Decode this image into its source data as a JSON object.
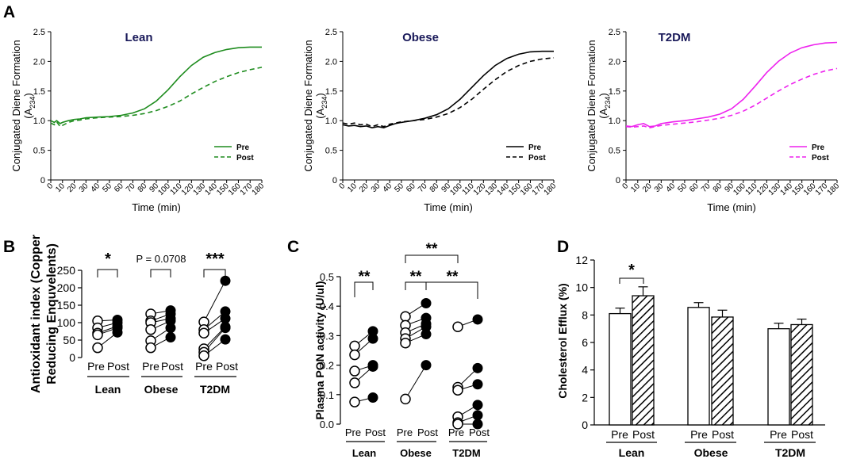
{
  "panel_letters": {
    "a": "A",
    "b": "B",
    "c": "C",
    "d": "D"
  },
  "chart_data": [
    {
      "id": "A-lean",
      "type": "line",
      "title": "Lean",
      "title_color": "#1a1a5a",
      "ylabel": "Conjugated Diene Formation",
      "ylabel2_base": "(A",
      "ylabel2_sub": "234",
      "ylabel2_end": ")",
      "xlabel": "Time (min)",
      "ylim": [
        0,
        2.5
      ],
      "yticks": [
        "0",
        "0.5",
        "1.0",
        "1.5",
        "2.0",
        "2.5"
      ],
      "xticks": [
        "0",
        "10",
        "20",
        "30",
        "40",
        "50",
        "60",
        "70",
        "80",
        "90",
        "100",
        "110",
        "120",
        "130",
        "140",
        "150",
        "160",
        "170",
        "180"
      ],
      "legend_position": "bottom-right",
      "series": [
        {
          "name": "Pre",
          "color": "#1e8c1e",
          "dash": false,
          "x": [
            0,
            3,
            5,
            8,
            10,
            15,
            20,
            25,
            30,
            40,
            50,
            60,
            70,
            80,
            90,
            100,
            110,
            120,
            130,
            140,
            150,
            160,
            170,
            180
          ],
          "y": [
            1.0,
            0.97,
            1.0,
            0.95,
            0.97,
            1.0,
            1.02,
            1.03,
            1.05,
            1.06,
            1.07,
            1.09,
            1.13,
            1.2,
            1.33,
            1.52,
            1.74,
            1.93,
            2.07,
            2.15,
            2.2,
            2.23,
            2.24,
            2.24
          ]
        },
        {
          "name": "Post",
          "color": "#1e8c1e",
          "dash": true,
          "x": [
            0,
            3,
            5,
            8,
            10,
            15,
            20,
            25,
            30,
            40,
            50,
            60,
            70,
            80,
            90,
            100,
            110,
            120,
            130,
            140,
            150,
            160,
            170,
            180
          ],
          "y": [
            0.96,
            0.93,
            0.98,
            0.9,
            0.92,
            0.97,
            1.0,
            1.01,
            1.03,
            1.05,
            1.06,
            1.07,
            1.09,
            1.12,
            1.17,
            1.24,
            1.33,
            1.45,
            1.56,
            1.66,
            1.74,
            1.81,
            1.86,
            1.9
          ]
        }
      ]
    },
    {
      "id": "A-obese",
      "type": "line",
      "title": "Obese",
      "title_color": "#1a1a5a",
      "ylabel": "Conjugated Diene Formation",
      "ylabel2_base": "(A",
      "ylabel2_sub": "234",
      "ylabel2_end": ")",
      "xlabel": "Time (min)",
      "ylim": [
        0,
        2.5
      ],
      "yticks": [
        "0",
        "0.5",
        "1.0",
        "1.5",
        "2.0",
        "2.5"
      ],
      "xticks": [
        "0",
        "10",
        "20",
        "30",
        "40",
        "50",
        "60",
        "70",
        "80",
        "90",
        "100",
        "110",
        "120",
        "130",
        "140",
        "150",
        "160",
        "170",
        "180"
      ],
      "legend_position": "bottom-right",
      "series": [
        {
          "name": "Pre",
          "color": "#000000",
          "dash": false,
          "x": [
            0,
            5,
            10,
            15,
            20,
            25,
            30,
            35,
            40,
            45,
            50,
            60,
            70,
            80,
            90,
            100,
            110,
            120,
            130,
            140,
            150,
            160,
            170,
            180
          ],
          "y": [
            0.93,
            0.91,
            0.92,
            0.9,
            0.91,
            0.88,
            0.9,
            0.88,
            0.92,
            0.95,
            0.97,
            1.0,
            1.04,
            1.1,
            1.2,
            1.36,
            1.56,
            1.76,
            1.93,
            2.05,
            2.12,
            2.16,
            2.17,
            2.17
          ]
        },
        {
          "name": "Post",
          "color": "#000000",
          "dash": true,
          "x": [
            0,
            5,
            10,
            15,
            20,
            25,
            30,
            35,
            40,
            45,
            50,
            60,
            70,
            80,
            90,
            100,
            110,
            120,
            130,
            140,
            150,
            160,
            170,
            180
          ],
          "y": [
            0.96,
            0.94,
            0.96,
            0.93,
            0.94,
            0.9,
            0.93,
            0.9,
            0.94,
            0.96,
            0.98,
            1.0,
            1.02,
            1.06,
            1.12,
            1.22,
            1.36,
            1.53,
            1.69,
            1.83,
            1.93,
            2.0,
            2.04,
            2.06
          ]
        }
      ]
    },
    {
      "id": "A-t2dm",
      "type": "line",
      "title": "T2DM",
      "title_color": "#1a1a5a",
      "ylabel": "Conjugated Diene Formation",
      "ylabel2_base": "(A",
      "ylabel2_sub": "234",
      "ylabel2_end": ")",
      "xlabel": "Time (min)",
      "ylim": [
        0,
        2.5
      ],
      "yticks": [
        "0",
        "0.5",
        "1.0",
        "1.5",
        "2.0",
        "2.5"
      ],
      "xticks": [
        "0",
        "10",
        "20",
        "30",
        "40",
        "50",
        "60",
        "70",
        "80",
        "90",
        "100",
        "110",
        "120",
        "130",
        "140",
        "150",
        "160",
        "170",
        "180"
      ],
      "legend_position": "bottom-right",
      "series": [
        {
          "name": "Pre",
          "color": "#ee22ee",
          "dash": false,
          "x": [
            0,
            5,
            10,
            15,
            20,
            25,
            30,
            40,
            50,
            60,
            70,
            80,
            90,
            100,
            110,
            120,
            130,
            140,
            150,
            160,
            170,
            180
          ],
          "y": [
            0.91,
            0.9,
            0.93,
            0.95,
            0.9,
            0.91,
            0.95,
            0.98,
            1.0,
            1.03,
            1.06,
            1.11,
            1.2,
            1.36,
            1.58,
            1.81,
            2.0,
            2.14,
            2.23,
            2.28,
            2.31,
            2.32
          ]
        },
        {
          "name": "Post",
          "color": "#ee22ee",
          "dash": true,
          "x": [
            0,
            5,
            10,
            15,
            20,
            25,
            30,
            40,
            50,
            60,
            70,
            80,
            90,
            100,
            110,
            120,
            130,
            140,
            150,
            160,
            170,
            180
          ],
          "y": [
            0.9,
            0.89,
            0.9,
            0.91,
            0.88,
            0.9,
            0.92,
            0.94,
            0.96,
            0.98,
            1.01,
            1.04,
            1.09,
            1.16,
            1.26,
            1.38,
            1.5,
            1.61,
            1.7,
            1.78,
            1.84,
            1.88
          ]
        }
      ]
    },
    {
      "id": "B",
      "type": "scatter",
      "ylabel": "Antioxidant index (Copper",
      "ylabel2": "Reducing Enquvelents)",
      "ylim": [
        0,
        250
      ],
      "yticks": [
        "0",
        "50",
        "100",
        "150",
        "200",
        "250"
      ],
      "tick_labels": [
        "Pre",
        "Post",
        "Pre",
        "Post",
        "Pre",
        "Post"
      ],
      "group_labels": [
        "Lean",
        "Obese",
        "T2DM"
      ],
      "significance": [
        "*",
        "P = 0.0708",
        "***"
      ],
      "groups": [
        {
          "name": "Lean",
          "pre": [
            105,
            85,
            70,
            65,
            28
          ],
          "post": [
            108,
            100,
            90,
            85,
            72
          ]
        },
        {
          "name": "Obese",
          "pre": [
            125,
            105,
            100,
            80,
            48,
            28
          ],
          "post": [
            135,
            125,
            112,
            105,
            85,
            58
          ]
        },
        {
          "name": "T2DM",
          "pre": [
            102,
            80,
            70,
            25,
            15,
            5
          ],
          "post": [
            220,
            132,
            112,
            88,
            85,
            52
          ]
        }
      ]
    },
    {
      "id": "C",
      "type": "scatter",
      "ylabel": "Plasma PON activity (U/ul)",
      "ylim": [
        0,
        0.5
      ],
      "yticks": [
        "0.0",
        "0.1",
        "0.2",
        "0.3",
        "0.4",
        "0.5"
      ],
      "tick_labels": [
        "Pre",
        "Post",
        "Pre",
        "Post",
        "Pre",
        "Post"
      ],
      "group_labels": [
        "Lean",
        "Obese",
        "T2DM"
      ],
      "significance": [
        "**",
        "**",
        "**",
        "**"
      ],
      "groups": [
        {
          "name": "Lean",
          "pre": [
            0.265,
            0.235,
            0.18,
            0.14,
            0.075
          ],
          "post": [
            0.315,
            0.29,
            0.2,
            0.195,
            0.09
          ]
        },
        {
          "name": "Obese",
          "pre": [
            0.365,
            0.335,
            0.31,
            0.29,
            0.275,
            0.085
          ],
          "post": [
            0.41,
            0.36,
            0.34,
            0.33,
            0.305,
            0.2
          ]
        },
        {
          "name": "T2DM",
          "pre": [
            0.33,
            0.125,
            0.115,
            0.025,
            0.005,
            0.0
          ],
          "post": [
            0.355,
            0.19,
            0.135,
            0.065,
            0.03,
            0.0
          ]
        }
      ]
    },
    {
      "id": "D",
      "type": "bar",
      "ylabel": "Cholesterol Efflux (%)",
      "ylim": [
        0,
        12
      ],
      "yticks": [
        "0",
        "2",
        "4",
        "6",
        "8",
        "10",
        "12"
      ],
      "tick_labels": [
        "Pre",
        "Post",
        "Pre",
        "Post",
        "Pre",
        "Post"
      ],
      "group_labels": [
        "Lean",
        "Obese",
        "T2DM"
      ],
      "significance": [
        "*"
      ],
      "groups": [
        {
          "name": "Lean",
          "pre": 8.1,
          "pre_err": 0.4,
          "post": 9.4,
          "post_err": 0.65
        },
        {
          "name": "Obese",
          "pre": 8.55,
          "pre_err": 0.35,
          "post": 7.85,
          "post_err": 0.5
        },
        {
          "name": "T2DM",
          "pre": 7.0,
          "pre_err": 0.4,
          "post": 7.3,
          "post_err": 0.4
        }
      ]
    }
  ]
}
